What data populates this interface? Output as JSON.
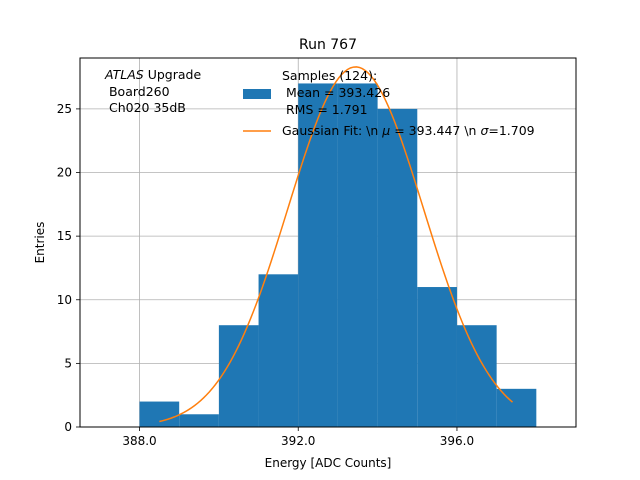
{
  "chart_data": {
    "type": "bar",
    "title": "Run 767",
    "xlabel": "Energy [ADC Counts]",
    "ylabel": "Entries",
    "xlim": [
      386.5,
      399.0
    ],
    "ylim": [
      0,
      29.0
    ],
    "xticks": [
      388.0,
      392.0,
      396.0
    ],
    "xtick_labels": [
      "388.0",
      "392.0",
      "396.0"
    ],
    "yticks": [
      0,
      5,
      10,
      15,
      20,
      25
    ],
    "ytick_labels": [
      "0",
      "5",
      "10",
      "15",
      "20",
      "25"
    ],
    "grid": true,
    "bins": [
      {
        "x0": 388.0,
        "x1": 389.0,
        "count": 2
      },
      {
        "x0": 389.0,
        "x1": 390.0,
        "count": 1
      },
      {
        "x0": 390.0,
        "x1": 391.0,
        "count": 8
      },
      {
        "x0": 391.0,
        "x1": 392.0,
        "count": 12
      },
      {
        "x0": 392.0,
        "x1": 393.0,
        "count": 27
      },
      {
        "x0": 393.0,
        "x1": 394.0,
        "count": 27
      },
      {
        "x0": 394.0,
        "x1": 395.0,
        "count": 25
      },
      {
        "x0": 395.0,
        "x1": 396.0,
        "count": 11
      },
      {
        "x0": 396.0,
        "x1": 397.0,
        "count": 8
      },
      {
        "x0": 397.0,
        "x1": 398.0,
        "count": 3
      }
    ],
    "fit": {
      "name": "Gaussian Fit",
      "amplitude": 28.3,
      "mu": 393.447,
      "sigma": 1.709,
      "x_range": [
        388.5,
        397.4
      ]
    },
    "legend": {
      "location": "top-right",
      "samples_line1": "Samples (124):",
      "samples_line2": " Mean = 393.426",
      "samples_line3": " RMS = 1.791",
      "fit_prefix": "Gaussian Fit: \\n ",
      "fit_mu_symbol": "μ",
      "fit_mid": " = 393.447 \\n ",
      "fit_sigma_symbol": "σ",
      "fit_suffix": "=1.709"
    },
    "annotation": {
      "atlas": "ATLAS",
      "upgrade": " Upgrade",
      "line2": " Board260",
      "line3": " Ch020 35dB"
    },
    "colors": {
      "bars": "#1f77b4",
      "fit": "#ff7f0e",
      "grid": "#b0b0b0"
    }
  }
}
